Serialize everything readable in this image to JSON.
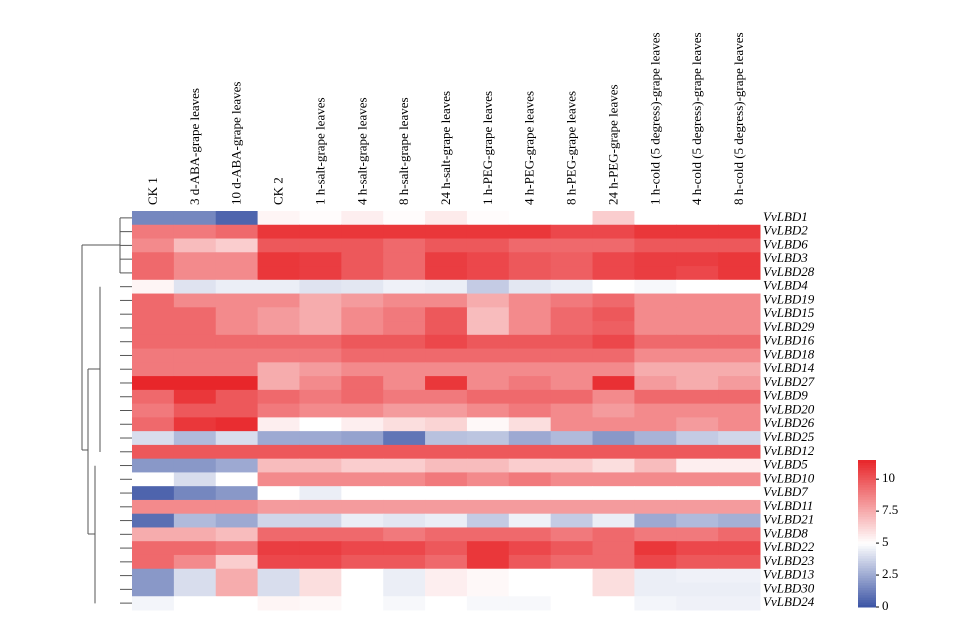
{
  "chart_data": {
    "type": "heatmap",
    "columns": [
      "CK 1",
      "3 d-ABA-grape leaves",
      "10 d-ABA-grape leaves",
      "CK 2",
      "1 h-salt-grape leaves",
      "4 h-salt-grape leaves",
      "8 h-salt-grape leaves",
      "24 h-salt-grape leaves",
      "1 h-PEG-grape leaves",
      "4 h-PEG-grape leaves",
      "8 h-PEG-grape leaves",
      "24 h-PEG-grape leaves",
      "1 h-cold (5 degress)-grape leaves",
      "4 h-cold (5 degress)-grape leaves",
      "8 h-cold (5 degress)-grape leaves"
    ],
    "rows": [
      "VvLBD1",
      "VvLBD2",
      "VvLBD6",
      "VvLBD3",
      "VvLBD28",
      "VvLBD4",
      "VvLBD19",
      "VvLBD15",
      "VvLBD29",
      "VvLBD16",
      "VvLBD18",
      "VvLBD14",
      "VvLBD27",
      "VvLBD9",
      "VvLBD20",
      "VvLBD26",
      "VvLBD25",
      "VvLBD12",
      "VvLBD5",
      "VvLBD10",
      "VvLBD7",
      "VvLBD11",
      "VvLBD21",
      "VvLBD8",
      "VvLBD22",
      "VvLBD23",
      "VvLBD13",
      "VvLBD30",
      "VvLBD24"
    ],
    "values": [
      [
        1.5,
        1.5,
        0.5,
        5.3,
        5.1,
        5.5,
        5.1,
        5.6,
        5.1,
        5,
        5,
        6.5,
        5,
        5,
        5
      ],
      [
        9,
        9,
        9.5,
        11,
        11,
        11,
        11,
        11,
        11,
        11,
        10.5,
        10.5,
        11,
        11,
        11
      ],
      [
        8.5,
        7,
        6.5,
        10,
        10,
        10,
        9.5,
        10,
        10,
        9.5,
        9.5,
        9.5,
        10,
        10,
        10
      ],
      [
        9.5,
        8.5,
        8.5,
        11,
        10.8,
        10,
        9.5,
        10.8,
        10.5,
        10,
        9.8,
        10.5,
        10.8,
        10.8,
        11
      ],
      [
        9.5,
        8.5,
        8.5,
        11,
        10.8,
        10,
        9.5,
        10.8,
        10.5,
        10,
        9.8,
        10.5,
        10.8,
        10.5,
        11
      ],
      [
        5.3,
        4.2,
        4.5,
        4.5,
        4.2,
        4.3,
        4.6,
        4.5,
        3.5,
        4.3,
        4.5,
        5,
        4.8,
        5,
        5
      ],
      [
        9.5,
        8.5,
        8.5,
        8.5,
        7.5,
        8,
        8.5,
        8.5,
        7.5,
        8.5,
        9,
        9.5,
        8.5,
        8.5,
        8.5
      ],
      [
        9.5,
        9.5,
        8.5,
        8,
        7.5,
        8.5,
        9,
        10,
        7,
        8.5,
        9.5,
        10,
        8.5,
        8.5,
        8.5
      ],
      [
        9.5,
        9.5,
        8.5,
        8,
        7.5,
        8.5,
        9,
        10,
        7,
        8.5,
        9.5,
        9.8,
        8.5,
        8.5,
        8.5
      ],
      [
        9.5,
        9.5,
        9.5,
        9.5,
        9.5,
        10,
        10,
        10.5,
        10,
        10,
        10,
        10.5,
        9.5,
        9.5,
        9.5
      ],
      [
        9,
        9,
        9,
        9,
        9,
        9.5,
        9.5,
        9.5,
        9.5,
        9.5,
        9.5,
        9.5,
        8.5,
        8.5,
        8.5
      ],
      [
        9,
        9,
        9,
        7.5,
        8,
        8.5,
        8.5,
        8.5,
        8.5,
        8.5,
        8.5,
        8.5,
        7.5,
        7.5,
        7.5
      ],
      [
        11.5,
        11.5,
        11.5,
        7.5,
        8.5,
        9.5,
        8.5,
        11,
        8.5,
        9,
        8.5,
        11.2,
        8,
        7.5,
        8
      ],
      [
        9.5,
        11,
        10,
        9.5,
        9,
        9.5,
        9,
        9,
        9.5,
        9.5,
        9.5,
        8.5,
        9.5,
        9.5,
        9.5
      ],
      [
        9,
        10,
        10,
        9,
        8.5,
        8.5,
        8,
        8,
        8.5,
        9,
        8.5,
        8,
        8.5,
        8.5,
        8.5
      ],
      [
        9.5,
        11,
        11.3,
        5.5,
        5,
        5.5,
        6,
        6.3,
        5.2,
        6,
        8.5,
        8.5,
        8.5,
        8,
        8.5
      ],
      [
        4,
        3,
        4,
        2.5,
        2.5,
        2.3,
        1,
        3.2,
        3.3,
        2.5,
        3,
        2,
        2.8,
        3.5,
        3.8
      ],
      [
        10,
        10,
        10,
        10,
        10,
        10,
        10,
        10,
        10,
        10,
        10,
        10,
        10,
        10,
        10
      ],
      [
        2,
        2,
        2.5,
        7,
        7,
        6.5,
        6.5,
        7,
        7,
        6.5,
        6.5,
        6,
        7,
        5.5,
        5.5
      ],
      [
        5,
        4,
        5,
        8.5,
        8.5,
        8.5,
        8.5,
        9,
        8.5,
        9,
        8.5,
        8.5,
        8.5,
        8.5,
        8.5
      ],
      [
        0.5,
        1.5,
        2,
        5,
        4.5,
        5,
        5,
        5,
        5,
        5,
        5,
        5,
        5,
        5,
        5
      ],
      [
        8.5,
        8.5,
        8.5,
        8,
        8,
        8,
        8,
        8,
        8,
        8,
        8,
        8,
        8,
        8,
        8
      ],
      [
        0.8,
        3,
        2.5,
        3.8,
        3.8,
        4.5,
        4.3,
        4.5,
        3.5,
        4.6,
        3.5,
        4.5,
        2.5,
        3,
        2.7
      ],
      [
        7.5,
        7.5,
        7,
        9.5,
        9.5,
        9.5,
        9,
        9.5,
        9.5,
        9.5,
        9,
        9.5,
        9,
        9,
        9.5
      ],
      [
        9.5,
        9.5,
        9,
        10.8,
        10.8,
        10.5,
        10.5,
        10,
        11,
        10.5,
        10,
        9.5,
        11,
        10.5,
        10.5
      ],
      [
        9.5,
        8.5,
        6.5,
        10.5,
        10.5,
        10,
        10,
        9.5,
        11,
        10,
        9.5,
        9.5,
        10.5,
        10,
        10
      ],
      [
        2,
        4,
        7.5,
        4,
        6,
        5,
        4.5,
        5.5,
        5.2,
        5,
        5,
        6,
        4.5,
        4.6,
        4.6
      ],
      [
        2,
        4,
        7.5,
        4,
        6,
        5,
        4.5,
        5.5,
        5.2,
        5,
        5,
        6,
        4.5,
        4.5,
        4.5
      ],
      [
        4.7,
        5,
        5,
        5.3,
        5.2,
        5,
        4.8,
        5,
        4.8,
        4.8,
        5,
        5,
        4.7,
        4.6,
        4.6
      ]
    ],
    "colors": [
      "#3a53a4",
      "#ffffff",
      "#e8262a"
    ],
    "zmid": 5,
    "zlim": [
      0,
      11.5
    ],
    "zticks": [
      0,
      2.5,
      5,
      7.5,
      10
    ]
  }
}
